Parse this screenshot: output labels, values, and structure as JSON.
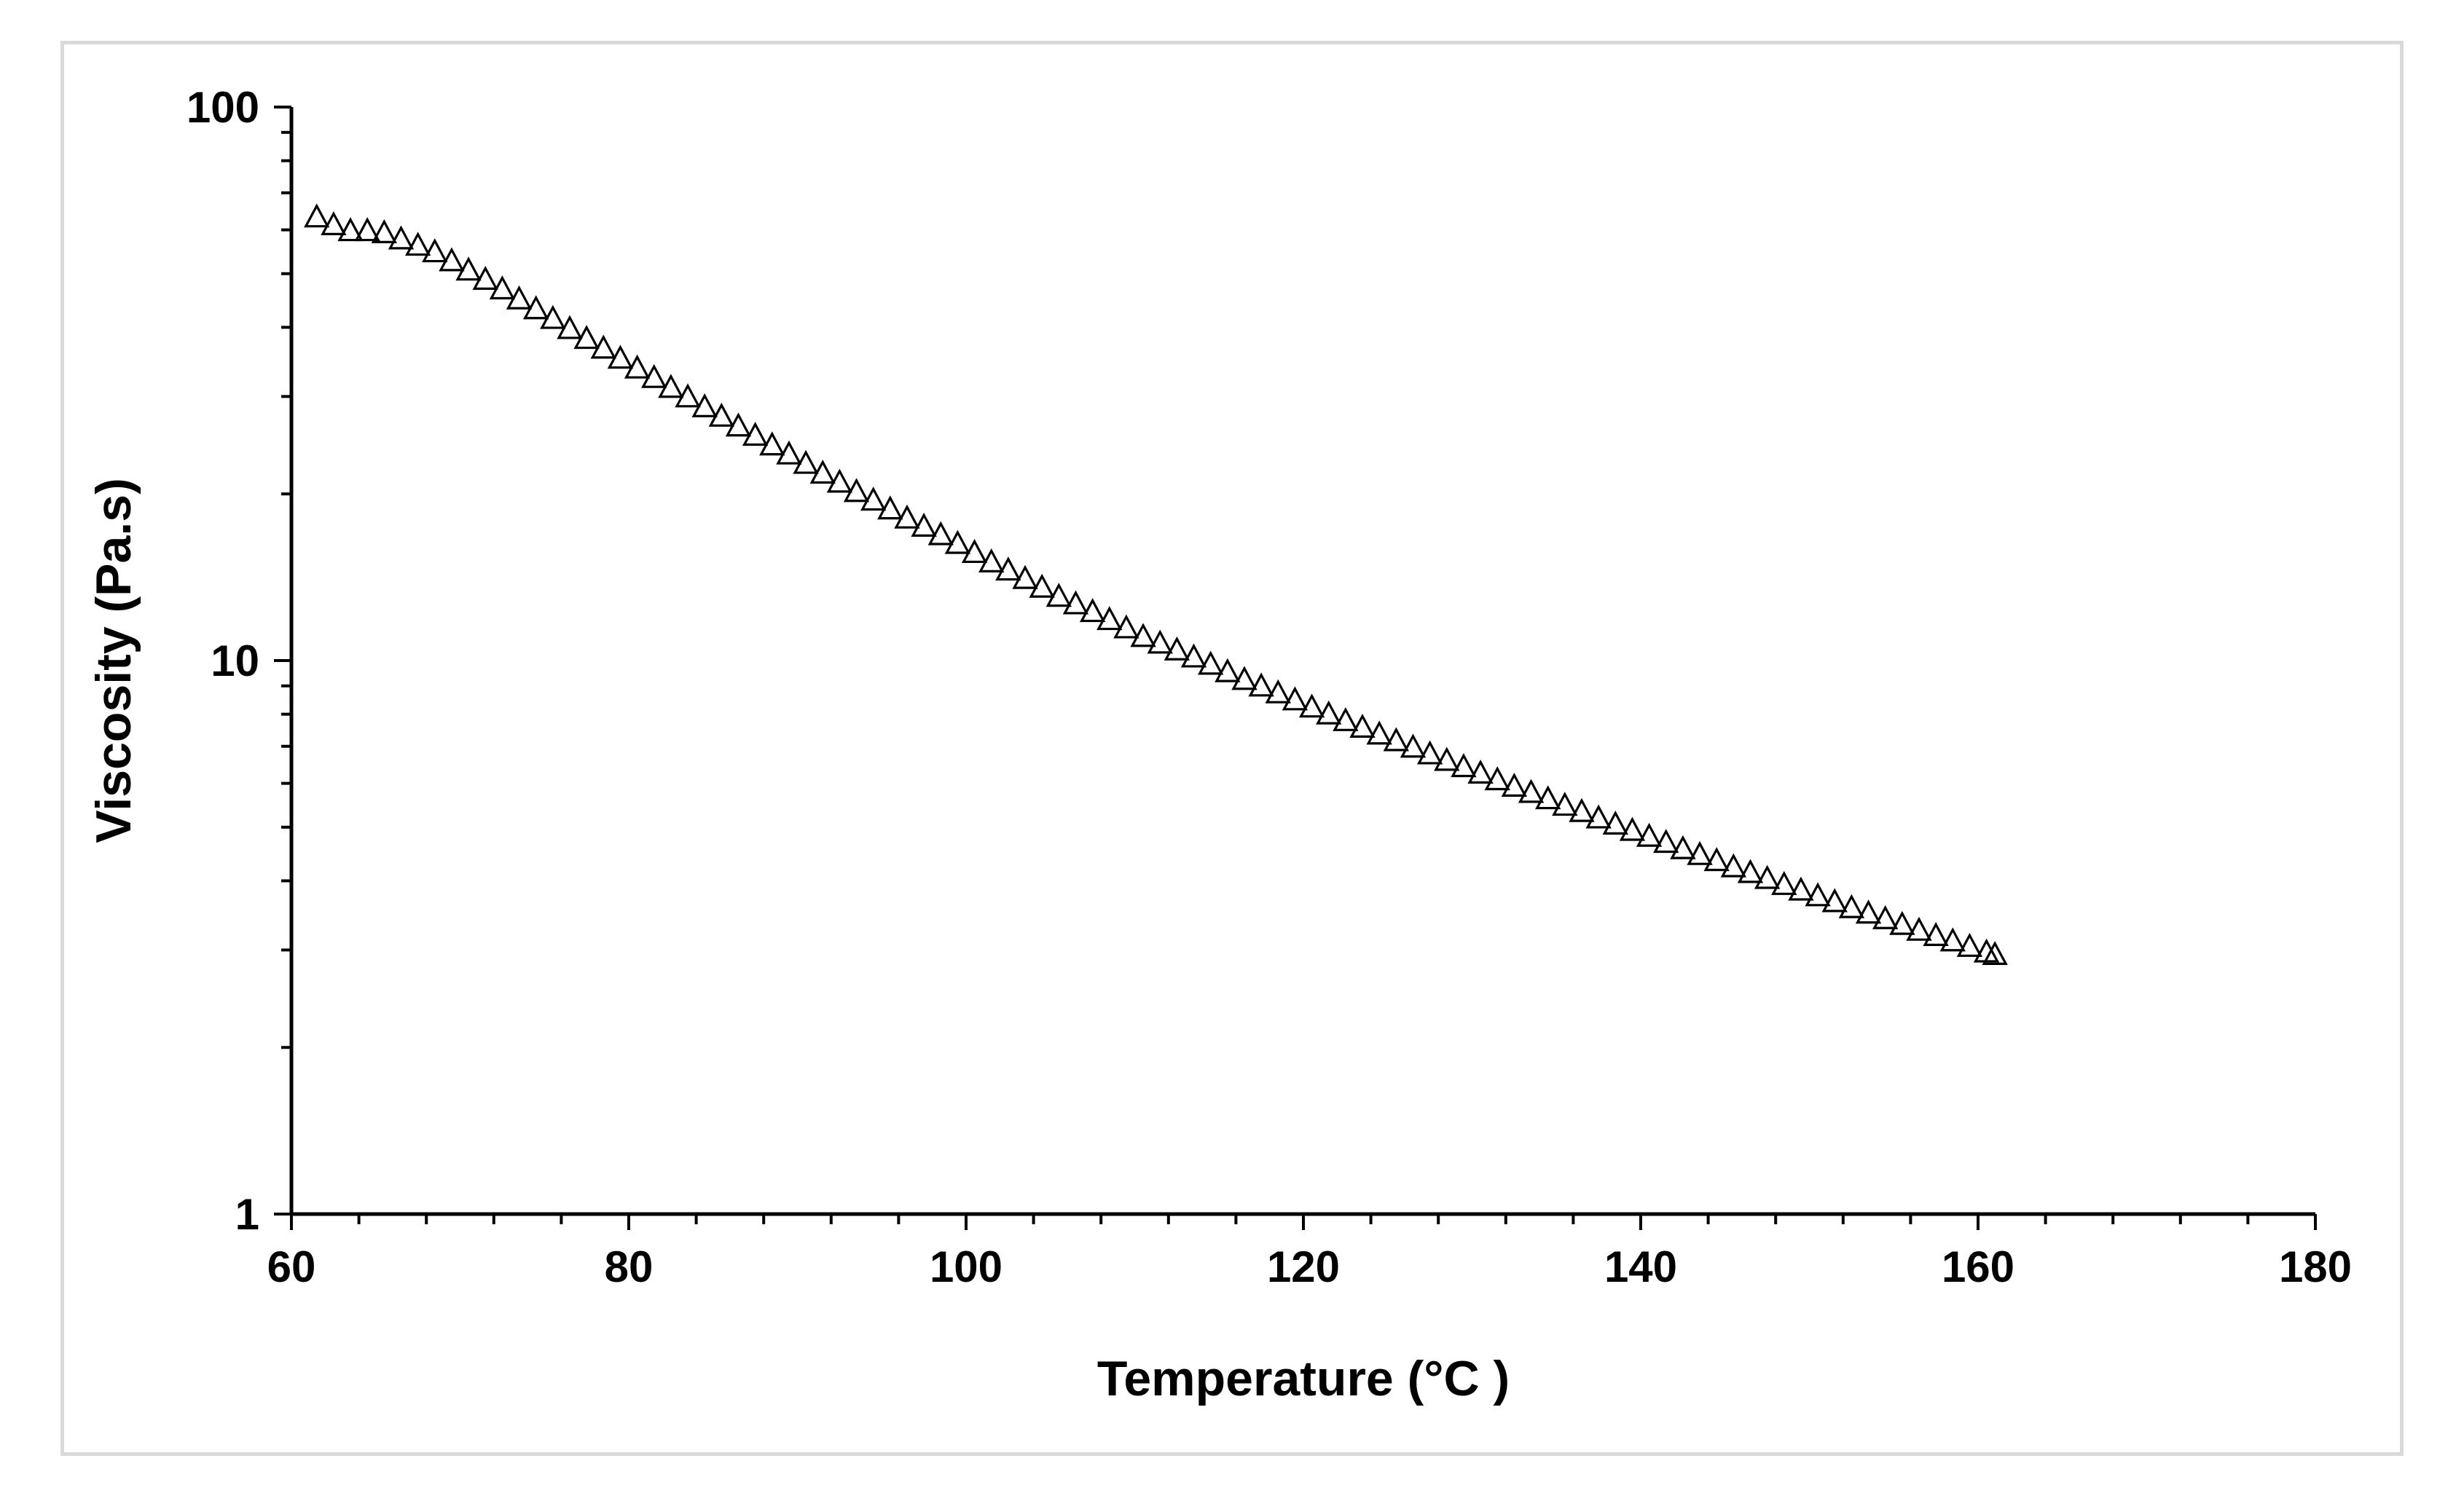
{
  "chart_data": {
    "type": "scatter",
    "title": "",
    "xlabel": "Temperature (°C )",
    "ylabel": "Viscosity (Pa.s)",
    "xlim": [
      60,
      180
    ],
    "ylim": [
      1,
      100
    ],
    "yscale": "log",
    "x_ticks": [
      "60",
      "80",
      "100",
      "120",
      "140",
      "160",
      "180"
    ],
    "y_ticks": [
      "1",
      "10",
      "100"
    ],
    "grid": false,
    "legend": "none",
    "marker": "open-triangle",
    "series": [
      {
        "name": "Viscosity",
        "x": [
          61.5,
          62.5,
          63.5,
          64.5,
          65.5,
          66.5,
          67.5,
          68.5,
          69.5,
          70.5,
          71.5,
          72.5,
          73.5,
          74.5,
          75.5,
          76.5,
          77.5,
          78.5,
          79.5,
          80.5,
          81.5,
          82.5,
          83.5,
          84.5,
          85.5,
          86.5,
          87.5,
          88.5,
          89.5,
          90.5,
          91.5,
          92.5,
          93.5,
          94.5,
          95.5,
          96.5,
          97.5,
          98.5,
          99.5,
          100.5,
          101.5,
          102.5,
          103.5,
          104.5,
          105.5,
          106.5,
          107.5,
          108.5,
          109.5,
          110.5,
          111.5,
          112.5,
          113.5,
          114.5,
          115.5,
          116.5,
          117.5,
          118.5,
          119.5,
          120.5,
          121.5,
          122.5,
          123.5,
          124.5,
          125.5,
          126.5,
          127.5,
          128.5,
          129.5,
          130.5,
          131.5,
          132.5,
          133.5,
          134.5,
          135.5,
          136.5,
          137.5,
          138.5,
          139.5,
          140.5,
          141.5,
          142.5,
          143.5,
          144.5,
          145.5,
          146.5,
          147.5,
          148.5,
          149.5,
          150.5,
          151.5,
          152.5,
          153.5,
          154.5,
          155.5,
          156.5,
          157.5,
          158.5,
          159.5,
          160.5,
          161.0
        ],
        "y": [
          63.0,
          61.0,
          59.5,
          59.5,
          59.0,
          57.5,
          56.0,
          54.5,
          52.5,
          50.5,
          48.6,
          46.7,
          44.8,
          43.0,
          41.3,
          39.6,
          38.0,
          36.5,
          35.0,
          33.6,
          32.3,
          31.0,
          29.8,
          28.6,
          27.5,
          26.4,
          25.4,
          24.4,
          23.5,
          22.6,
          21.7,
          20.9,
          20.1,
          19.4,
          18.7,
          18.0,
          17.4,
          16.8,
          16.2,
          15.6,
          15.0,
          14.5,
          14.0,
          13.5,
          13.0,
          12.6,
          12.2,
          11.8,
          11.4,
          11.0,
          10.7,
          10.4,
          10.1,
          9.8,
          9.5,
          9.2,
          8.95,
          8.7,
          8.45,
          8.2,
          7.97,
          7.75,
          7.54,
          7.33,
          7.13,
          6.94,
          6.75,
          6.57,
          6.4,
          6.23,
          6.06,
          5.9,
          5.75,
          5.6,
          5.45,
          5.31,
          5.17,
          5.04,
          4.91,
          4.79,
          4.67,
          4.55,
          4.44,
          4.33,
          4.22,
          4.12,
          4.02,
          3.92,
          3.83,
          3.74,
          3.65,
          3.56,
          3.48,
          3.4,
          3.32,
          3.24,
          3.17,
          3.1,
          3.03,
          2.96,
          2.93
        ]
      }
    ]
  }
}
